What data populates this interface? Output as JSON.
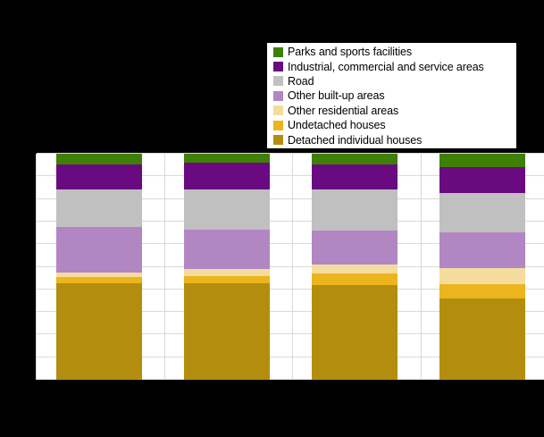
{
  "colors": {
    "background": "#000000",
    "plot_background": "#ffffff",
    "gridline": "#d9d9d9",
    "legend_border": "#000000"
  },
  "legend": {
    "items": [
      {
        "label": "Parks and sports facilities",
        "color": "#3f7f04"
      },
      {
        "label": "Industrial, commercial and service areas",
        "color": "#6a0a80"
      },
      {
        "label": "Road",
        "color": "#c0c0c0"
      },
      {
        "label": "Other built-up areas",
        "color": "#b286c3"
      },
      {
        "label": "Other residential areas",
        "color": "#f4dc9e"
      },
      {
        "label": "Undetached houses",
        "color": "#ecb41d"
      },
      {
        "label": "Detached individual houses",
        "color": "#b38d0e"
      }
    ]
  },
  "chart_data": {
    "type": "bar",
    "stacked": true,
    "unit": "percent",
    "stack_order": "bottom-to-top",
    "categories": [
      "",
      "",
      "",
      ""
    ],
    "series": [
      {
        "name": "Detached individual houses",
        "color": "#b38d0e",
        "values": [
          42.8,
          42.7,
          41.9,
          35.9
        ]
      },
      {
        "name": "Undetached houses",
        "color": "#ecb41d",
        "values": [
          2.8,
          3.3,
          5.0,
          6.3
        ]
      },
      {
        "name": "Other residential areas",
        "color": "#f4dc9e",
        "values": [
          2.0,
          2.9,
          4.0,
          7.2
        ]
      },
      {
        "name": "Other built-up areas",
        "color": "#b286c3",
        "values": [
          20.2,
          17.6,
          15.3,
          15.7
        ]
      },
      {
        "name": "Road",
        "color": "#c0c0c0",
        "values": [
          16.6,
          17.7,
          18.2,
          17.6
        ]
      },
      {
        "name": "Industrial, commercial and service areas",
        "color": "#6a0a80",
        "values": [
          10.9,
          11.9,
          10.8,
          11.3
        ]
      },
      {
        "name": "Parks and sports facilities",
        "color": "#3f7f04",
        "values": [
          4.7,
          3.9,
          4.8,
          6.0
        ]
      }
    ],
    "ylim": [
      0,
      100
    ],
    "y_gridline_step": 10,
    "grid": true,
    "legend_position": "top-right",
    "axis_tick_labels_visible": false
  }
}
